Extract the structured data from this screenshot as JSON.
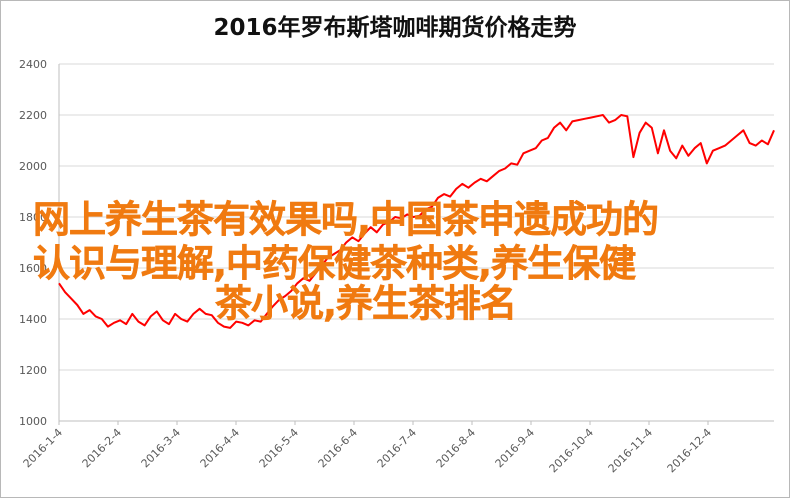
{
  "chart_data": {
    "type": "line",
    "title": "2016年罗布斯塔咖啡期货价格走势",
    "xlabel": "",
    "ylabel": "",
    "ylim": [
      1000,
      2400
    ],
    "yticks": [
      1000,
      1200,
      1400,
      1600,
      1800,
      2000,
      2200,
      2400
    ],
    "y_tick_labels": [
      "1000",
      "1200",
      "1400",
      "1600",
      "1800",
      "2000",
      "2200",
      "2400"
    ],
    "x_tick_labels": [
      "2016-1-4",
      "2016-2-4",
      "2016-3-4",
      "2016-4-4",
      "2016-5-4",
      "2016-6-4",
      "2016-7-4",
      "2016-8-4",
      "2016-9-4",
      "2016-10-4",
      "2016-11-4",
      "2016-12-4"
    ],
    "grid": "horizontal",
    "legend": "none",
    "colors": {
      "line": "#ff0000",
      "grid": "#d9d9d9",
      "axis": "#bfbfbf"
    },
    "series": [
      {
        "values": [
          1540,
          1505,
          1480,
          1455,
          1420,
          1435,
          1410,
          1400,
          1370,
          1385,
          1395,
          1380,
          1420,
          1390,
          1375,
          1410,
          1430,
          1395,
          1380,
          1420,
          1400,
          1390,
          1420,
          1440,
          1420,
          1415,
          1385,
          1370,
          1365,
          1390,
          1385,
          1375,
          1395,
          1390,
          1420,
          1450,
          1475,
          1490,
          1510,
          1540,
          1560,
          1550,
          1580,
          1610,
          1640,
          1655,
          1670,
          1700,
          1720,
          1705,
          1735,
          1760,
          1740,
          1770,
          1780,
          1800,
          1795,
          1810,
          1800,
          1805,
          1830,
          1840,
          1875,
          1890,
          1880,
          1910,
          1930,
          1915,
          1935,
          1950,
          1940,
          1960,
          1980,
          1990,
          2010,
          2005,
          2050,
          2060,
          2070,
          2100,
          2110,
          2150,
          2170,
          2140,
          2175,
          2180,
          2185,
          2190,
          2195,
          2200,
          2170,
          2180,
          2200,
          2195,
          2035,
          2130,
          2170,
          2150,
          2050,
          2140,
          2060,
          2030,
          2080,
          2040,
          2070,
          2090,
          2010,
          2060,
          2070,
          2080,
          2100,
          2120,
          2140,
          2090,
          2080,
          2100,
          2085,
          2140
        ]
      }
    ]
  },
  "overlay_text": {
    "line1": "网上养生茶有效果吗,中国茶申遗成功的",
    "line2": "认识与理解,中药保健茶种类,养生保健",
    "line3": "茶小说,养生茶排名"
  }
}
